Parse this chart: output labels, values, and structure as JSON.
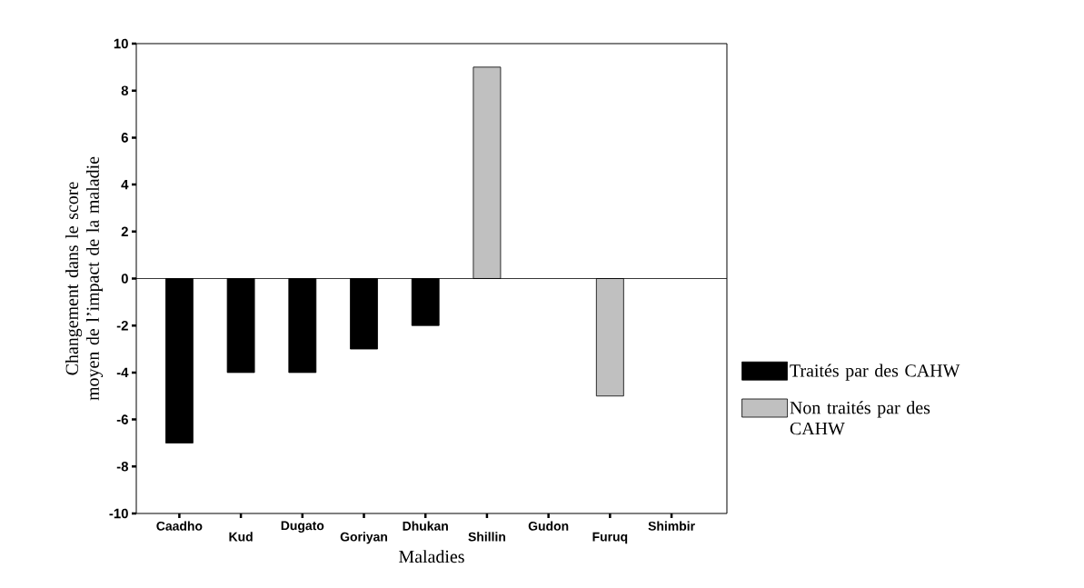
{
  "chart_data": {
    "type": "bar",
    "xlabel": "Maladies",
    "ylabel": "Changement dans le score moyen de l’impact de la maladie",
    "categories": [
      "Caadho",
      "Kud",
      "Dugato",
      "Goriyan",
      "Dhukan",
      "Shillin",
      "Gudon",
      "Furuq",
      "Shimbir"
    ],
    "series": [
      {
        "name": "Traités par des CAHW",
        "color": "#000000",
        "values": [
          -7,
          -4,
          -4,
          -3,
          -2,
          null,
          null,
          null,
          null
        ]
      },
      {
        "name": "Non traités par des CAHW",
        "color": "#c0c0c0",
        "values": [
          null,
          null,
          null,
          null,
          null,
          9,
          null,
          -5,
          null
        ]
      }
    ],
    "ylim": [
      -10,
      10
    ],
    "yticks": [
      -10,
      -8,
      -6,
      -4,
      -2,
      0,
      2,
      4,
      6,
      8,
      10
    ],
    "legend": "right",
    "grid": false,
    "ref_lines": [
      {
        "axis": "y",
        "value": 0,
        "color": "#000000"
      }
    ]
  }
}
